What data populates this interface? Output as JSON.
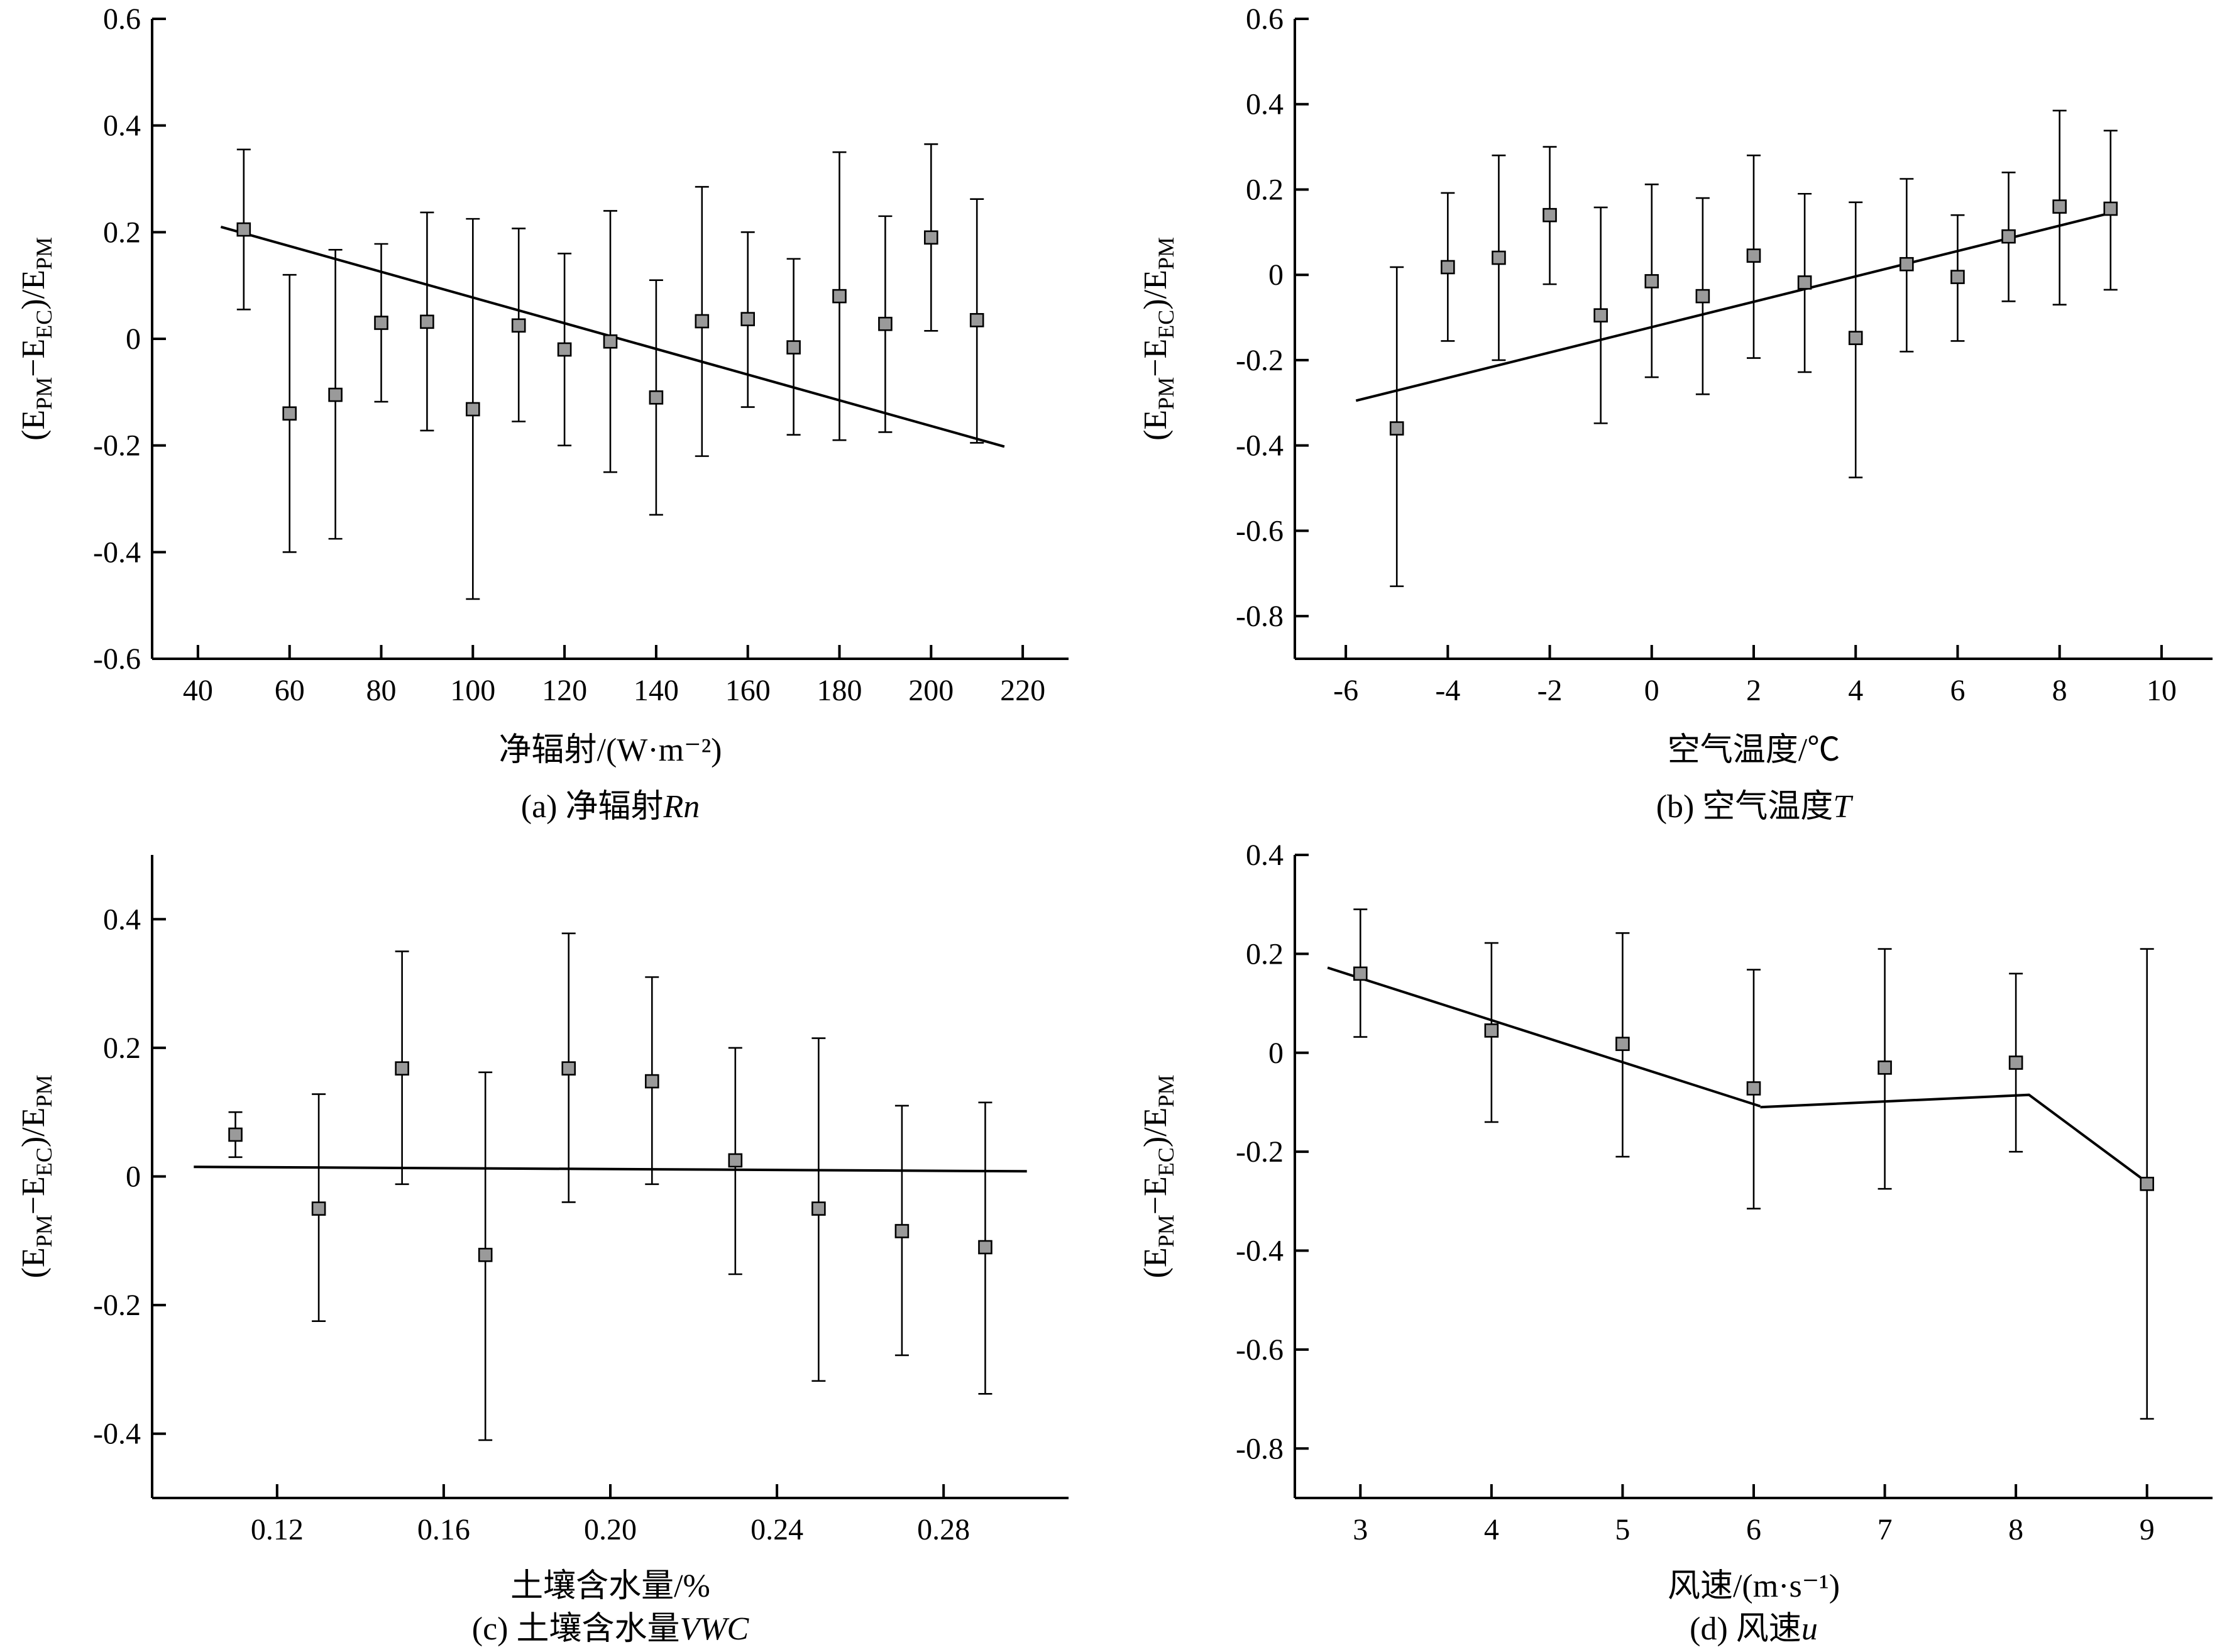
{
  "chart_data": [
    {
      "id": "a",
      "type": "scatter",
      "xlabel": "净辐射/(W·m⁻²)",
      "caption": "(a) 净辐射Rn",
      "caption_plain": "(a) 净辐射",
      "caption_italic": "Rn",
      "ylabel_parts": [
        "(E",
        "PM",
        "−E",
        "EC",
        ")/E",
        "PM"
      ],
      "xlim": [
        30,
        230
      ],
      "ylim": [
        -0.6,
        0.6
      ],
      "xticks": [
        40,
        60,
        80,
        100,
        120,
        140,
        160,
        180,
        200,
        220
      ],
      "xtick_labels": [
        "40",
        "60",
        "80",
        "100",
        "120",
        "140",
        "160",
        "180",
        "200",
        "220"
      ],
      "yticks": [
        -0.6,
        -0.4,
        -0.2,
        0,
        0.2,
        0.4,
        0.6
      ],
      "ytick_labels": [
        "-0.6",
        "-0.4",
        "-0.2",
        "0",
        "0.2",
        "0.4",
        "0.6"
      ],
      "x": [
        50,
        60,
        70,
        80,
        90,
        100,
        110,
        120,
        130,
        140,
        150,
        160,
        170,
        180,
        190,
        200,
        210
      ],
      "y": [
        0.205,
        -0.14,
        -0.105,
        0.03,
        0.032,
        -0.132,
        0.025,
        -0.02,
        -0.005,
        -0.11,
        0.033,
        0.037,
        -0.016,
        0.08,
        0.028,
        0.19,
        0.035
      ],
      "err_low": [
        0.055,
        -0.4,
        -0.375,
        -0.118,
        -0.172,
        -0.488,
        -0.155,
        -0.2,
        -0.25,
        -0.33,
        -0.22,
        -0.128,
        -0.18,
        -0.19,
        -0.175,
        0.015,
        -0.195
      ],
      "err_high": [
        0.355,
        0.12,
        0.167,
        0.178,
        0.237,
        0.225,
        0.207,
        0.16,
        0.24,
        0.11,
        0.285,
        0.2,
        0.15,
        0.35,
        0.23,
        0.365,
        0.262
      ],
      "fit_lines": [
        [
          [
            45,
            0.21
          ],
          [
            216,
            -0.202
          ]
        ]
      ]
    },
    {
      "id": "b",
      "type": "scatter",
      "xlabel": "空气温度/℃",
      "caption": "(b) 空气温度T",
      "caption_plain": "(b) 空气温度",
      "caption_italic": "T",
      "ylabel_parts": [
        "(E",
        "PM",
        "−E",
        "EC",
        ")/E",
        "PM"
      ],
      "xlim": [
        -7,
        11
      ],
      "ylim": [
        -0.9,
        0.6
      ],
      "xticks": [
        -6,
        -4,
        -2,
        0,
        2,
        4,
        6,
        8,
        10
      ],
      "xtick_labels": [
        "-6",
        "-4",
        "-2",
        "0",
        "2",
        "4",
        "6",
        "8",
        "10"
      ],
      "yticks": [
        -0.8,
        -0.6,
        -0.4,
        -0.2,
        0,
        0.2,
        0.4,
        0.6
      ],
      "ytick_labels": [
        "-0.8",
        "-0.6",
        "-0.4",
        "-0.2",
        "0",
        "0.2",
        "0.4",
        "0.6"
      ],
      "x": [
        -5,
        -4,
        -3,
        -2,
        -1,
        0,
        1,
        2,
        3,
        4,
        5,
        6,
        7,
        8,
        9
      ],
      "y": [
        -0.36,
        0.018,
        0.04,
        0.14,
        -0.095,
        -0.015,
        -0.05,
        0.045,
        -0.018,
        -0.148,
        0.025,
        -0.005,
        0.09,
        0.16,
        0.155
      ],
      "err_low": [
        -0.73,
        -0.155,
        -0.2,
        -0.022,
        -0.348,
        -0.24,
        -0.28,
        -0.195,
        -0.228,
        -0.475,
        -0.18,
        -0.155,
        -0.062,
        -0.07,
        -0.035
      ],
      "err_high": [
        0.018,
        0.192,
        0.28,
        0.3,
        0.158,
        0.212,
        0.18,
        0.28,
        0.19,
        0.17,
        0.225,
        0.14,
        0.24,
        0.385,
        0.338
      ],
      "fit_lines": [
        [
          [
            -5.8,
            -0.295
          ],
          [
            9,
            0.145
          ]
        ]
      ]
    },
    {
      "id": "c",
      "type": "scatter",
      "xlabel": "土壤含水量/%",
      "caption": "(c) 土壤含水量VWC",
      "caption_plain": "(c) 土壤含水量",
      "caption_italic": "VWC",
      "ylabel_parts": [
        "(E",
        "PM",
        "−E",
        "EC",
        ")/E",
        "PM"
      ],
      "xlim": [
        0.09,
        0.31
      ],
      "ylim": [
        -0.5,
        0.5
      ],
      "xticks": [
        0.12,
        0.16,
        0.2,
        0.24,
        0.28
      ],
      "xtick_labels": [
        "0.12",
        "0.16",
        "0.20",
        "0.24",
        "0.28"
      ],
      "yticks": [
        -0.4,
        -0.2,
        0,
        0.2,
        0.4
      ],
      "ytick_labels": [
        "-0.4",
        "-0.2",
        "0",
        "0.2",
        "0.4"
      ],
      "x": [
        0.11,
        0.13,
        0.15,
        0.17,
        0.19,
        0.21,
        0.23,
        0.25,
        0.27,
        0.29
      ],
      "y": [
        0.065,
        -0.05,
        0.168,
        -0.122,
        0.168,
        0.148,
        0.025,
        -0.05,
        -0.085,
        -0.11
      ],
      "err_low": [
        0.03,
        -0.225,
        -0.012,
        -0.41,
        -0.04,
        -0.012,
        -0.152,
        -0.318,
        -0.278,
        -0.338
      ],
      "err_high": [
        0.1,
        0.128,
        0.35,
        0.162,
        0.378,
        0.31,
        0.2,
        0.215,
        0.11,
        0.115
      ],
      "fit_lines": [
        [
          [
            0.1,
            0.015
          ],
          [
            0.3,
            0.008
          ]
        ]
      ]
    },
    {
      "id": "d",
      "type": "scatter",
      "xlabel": "风速/(m·s⁻¹)",
      "caption": "(d) 风速u",
      "caption_plain": "(d) 风速",
      "caption_italic": "u",
      "ylabel_parts": [
        "(E",
        "PM",
        "−E",
        "EC",
        ")/E",
        "PM"
      ],
      "xlim": [
        2.5,
        9.5
      ],
      "ylim": [
        -0.9,
        0.4
      ],
      "xticks": [
        3,
        4,
        5,
        6,
        7,
        8,
        9
      ],
      "xtick_labels": [
        "3",
        "4",
        "5",
        "6",
        "7",
        "8",
        "9"
      ],
      "yticks": [
        -0.8,
        -0.6,
        -0.4,
        -0.2,
        0,
        0.2,
        0.4
      ],
      "ytick_labels": [
        "-0.8",
        "-0.6",
        "-0.4",
        "-0.2",
        "0",
        "0.2",
        "0.4"
      ],
      "x": [
        3,
        4,
        5,
        6,
        7,
        8,
        9
      ],
      "y": [
        0.16,
        0.045,
        0.018,
        -0.072,
        -0.03,
        -0.02,
        -0.265
      ],
      "err_low": [
        0.032,
        -0.14,
        -0.21,
        -0.315,
        -0.275,
        -0.2,
        -0.74
      ],
      "err_high": [
        0.29,
        0.222,
        0.242,
        0.168,
        0.21,
        0.16,
        0.21
      ],
      "fit_lines": [
        [
          [
            2.75,
            0.172
          ],
          [
            6.05,
            -0.108
          ]
        ],
        [
          [
            6.05,
            -0.11
          ],
          [
            8.1,
            -0.085
          ],
          [
            9,
            -0.262
          ]
        ]
      ]
    }
  ]
}
